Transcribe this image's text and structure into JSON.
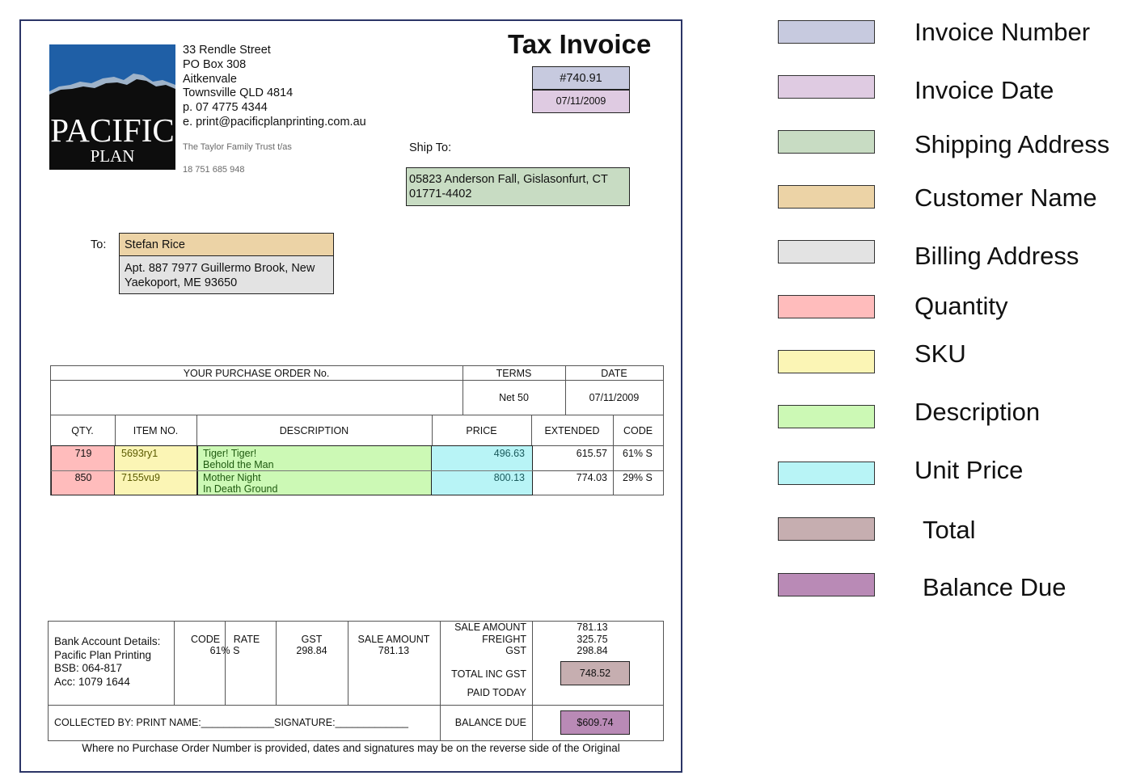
{
  "company": {
    "logo_line1": "PACIFIC",
    "logo_line2": "PLAN PRINTING",
    "address": [
      "33 Rendle Street",
      "PO Box 308",
      "Aitkenvale",
      "Townsville QLD 4814",
      "p. 07 4775 4344",
      "e. print@pacificplanprinting.com.au"
    ],
    "trust": "The Taylor Family Trust t/as",
    "abn": "18 751 685 948"
  },
  "invoice": {
    "title": "Tax Invoice",
    "number": "#740.91",
    "date": "07/11/2009"
  },
  "ship_to": {
    "label": "Ship To:",
    "lines": [
      "05823 Anderson Fall, Gislasonfurt, CT",
      "01771-4402"
    ]
  },
  "bill_to": {
    "label": "To:",
    "name": "Stefan Rice",
    "lines": [
      "Apt. 887 7977 Guillermo Brook, New",
      "Yaekoport, ME 93650"
    ]
  },
  "order_header": {
    "po_label": "YOUR PURCHASE ORDER No.",
    "terms_label": "TERMS",
    "date_label": "DATE",
    "po_value": "",
    "terms_value": "Net 50",
    "date_value": "07/11/2009"
  },
  "items_header": {
    "qty": "QTY.",
    "item_no": "ITEM NO.",
    "description": "DESCRIPTION",
    "price": "PRICE",
    "extended": "EXTENDED",
    "code": "CODE"
  },
  "items": [
    {
      "qty": "719",
      "sku": "5693ry1",
      "desc1": "Tiger! Tiger!",
      "desc2": "Behold the Man",
      "price": "496.63",
      "extended": "615.57",
      "code": "61% S"
    },
    {
      "qty": "850",
      "sku": "7155vu9",
      "desc1": "Mother Night",
      "desc2": "In Death Ground",
      "price": "800.13",
      "extended": "774.03",
      "code": "29% S"
    }
  ],
  "footer": {
    "bank_label": "Bank Account Details:",
    "bank_name": "Pacific Plan Printing",
    "bsb": "BSB: 064-817",
    "acc": "Acc: 1079 1644",
    "code_label": "CODE",
    "rate_label": "RATE",
    "code_value": "61% S",
    "gst_label": "GST",
    "gst_value": "298.84",
    "sale_amount_label": "SALE AMOUNT",
    "sale_amount_value": "781.13",
    "sum_labels": [
      "SALE AMOUNT",
      "FREIGHT",
      "GST"
    ],
    "sum_values": [
      "781.13",
      "325.75",
      "298.84"
    ],
    "total_label": "TOTAL INC GST",
    "total_value": "748.52",
    "paid_label": "PAID TODAY",
    "collected_label": "COLLECTED BY: PRINT NAME:_____________SIGNATURE:_____________",
    "balance_label": "BALANCE DUE",
    "balance_value": "$609.74",
    "note": "Where no Purchase Order Number is provided, dates and signatures may be on the reverse side of the Original"
  },
  "legend": [
    {
      "label": "Invoice Number",
      "color": "#c7cadf"
    },
    {
      "label": "Invoice Date",
      "color": "#dfcbe2"
    },
    {
      "label": "Shipping Address",
      "color": "#c8dcc3"
    },
    {
      "label": "Customer Name",
      "color": "#ecd3a6"
    },
    {
      "label": "Billing Address",
      "color": "#e3e3e3"
    },
    {
      "label": "Quantity",
      "color": "#ffbcbc"
    },
    {
      "label": "SKU",
      "color": "#fbf5b5"
    },
    {
      "label": "Description",
      "color": "#ccf9b5"
    },
    {
      "label": "Unit Price",
      "color": "#b8f4f6"
    },
    {
      "label": "Total",
      "color": "#c6aeb0"
    },
    {
      "label": "Balance Due",
      "color": "#b98ab6"
    }
  ]
}
